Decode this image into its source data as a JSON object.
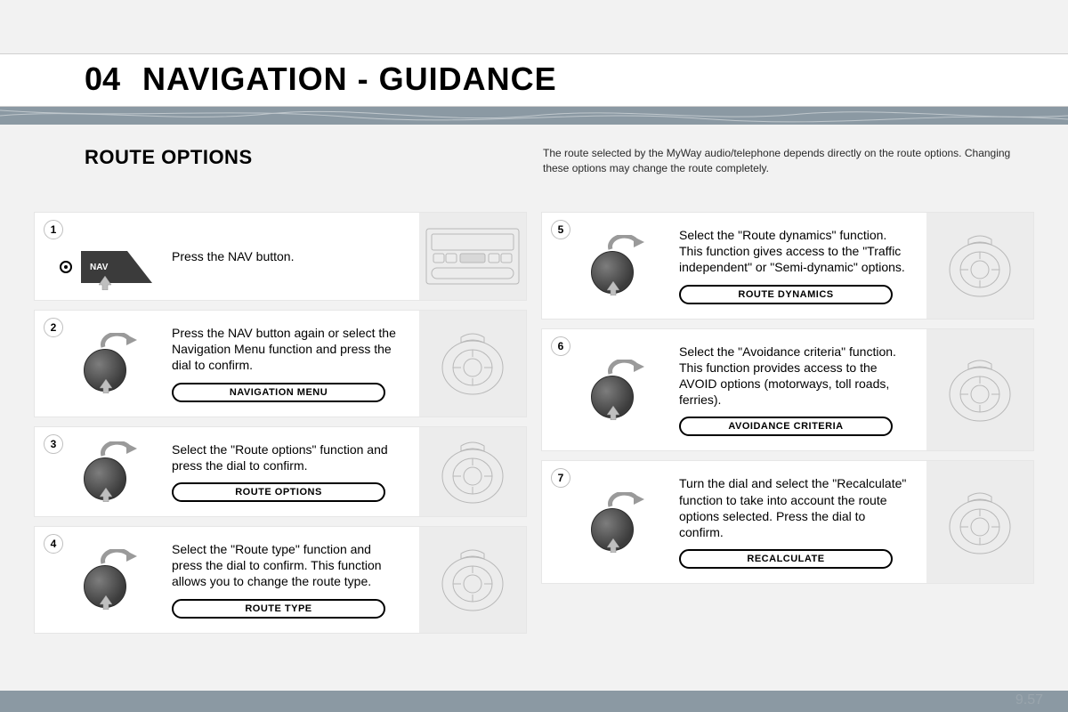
{
  "colors": {
    "band": "#8b99a3",
    "page_bg": "#f2f2f2",
    "card_bg": "#ffffff",
    "preview_bg": "#ececec",
    "text": "#000000",
    "muted": "#2a2a2a",
    "page_num_color": "#9aa5ad"
  },
  "typography": {
    "title_fontsize": 36,
    "section_fontsize": 22,
    "body_fontsize": 14,
    "intro_fontsize": 12,
    "pill_fontsize": 11
  },
  "header": {
    "chapter_number": "04",
    "chapter_title": "NAVIGATION - GUIDANCE"
  },
  "section": {
    "title": "ROUTE OPTIONS",
    "intro": "The route selected by the MyWay audio/telephone depends directly on the route options. Changing these options may change the route completely."
  },
  "steps_left": [
    {
      "num": "1",
      "control": "nav-button",
      "instruction": "Press the NAV button.",
      "pill": null,
      "preview": "panel"
    },
    {
      "num": "2",
      "control": "dial",
      "instruction": "Press the NAV button again or select the Navigation Menu function and press the dial to confirm.",
      "pill": "NAVIGATION MENU",
      "preview": "dial"
    },
    {
      "num": "3",
      "control": "dial",
      "instruction": "Select the \"Route options\" function and press the dial to confirm.",
      "pill": "ROUTE OPTIONS",
      "preview": "dial"
    },
    {
      "num": "4",
      "control": "dial",
      "instruction": "Select the \"Route type\" function and press the dial to confirm. This function allows you to change the route type.",
      "pill": "ROUTE TYPE",
      "preview": "dial"
    }
  ],
  "steps_right": [
    {
      "num": "5",
      "control": "dial",
      "instruction": "Select the \"Route dynamics\" function. This function gives access to the \"Traffic independent\" or \"Semi-dynamic\" options.",
      "pill": "ROUTE DYNAMICS",
      "preview": "dial"
    },
    {
      "num": "6",
      "control": "dial",
      "instruction": "Select the \"Avoidance criteria\" function. This function provides access to the AVOID options (motorways, toll roads, ferries).",
      "pill": "AVOIDANCE CRITERIA",
      "preview": "dial"
    },
    {
      "num": "7",
      "control": "dial",
      "instruction": "Turn the dial and select the \"Recalculate\" function to take into account the route options selected. Press the dial to confirm.",
      "pill": "RECALCULATE",
      "preview": "dial"
    }
  ],
  "footer": {
    "page_number": "9.57"
  },
  "labels": {
    "nav_button": "NAV"
  }
}
